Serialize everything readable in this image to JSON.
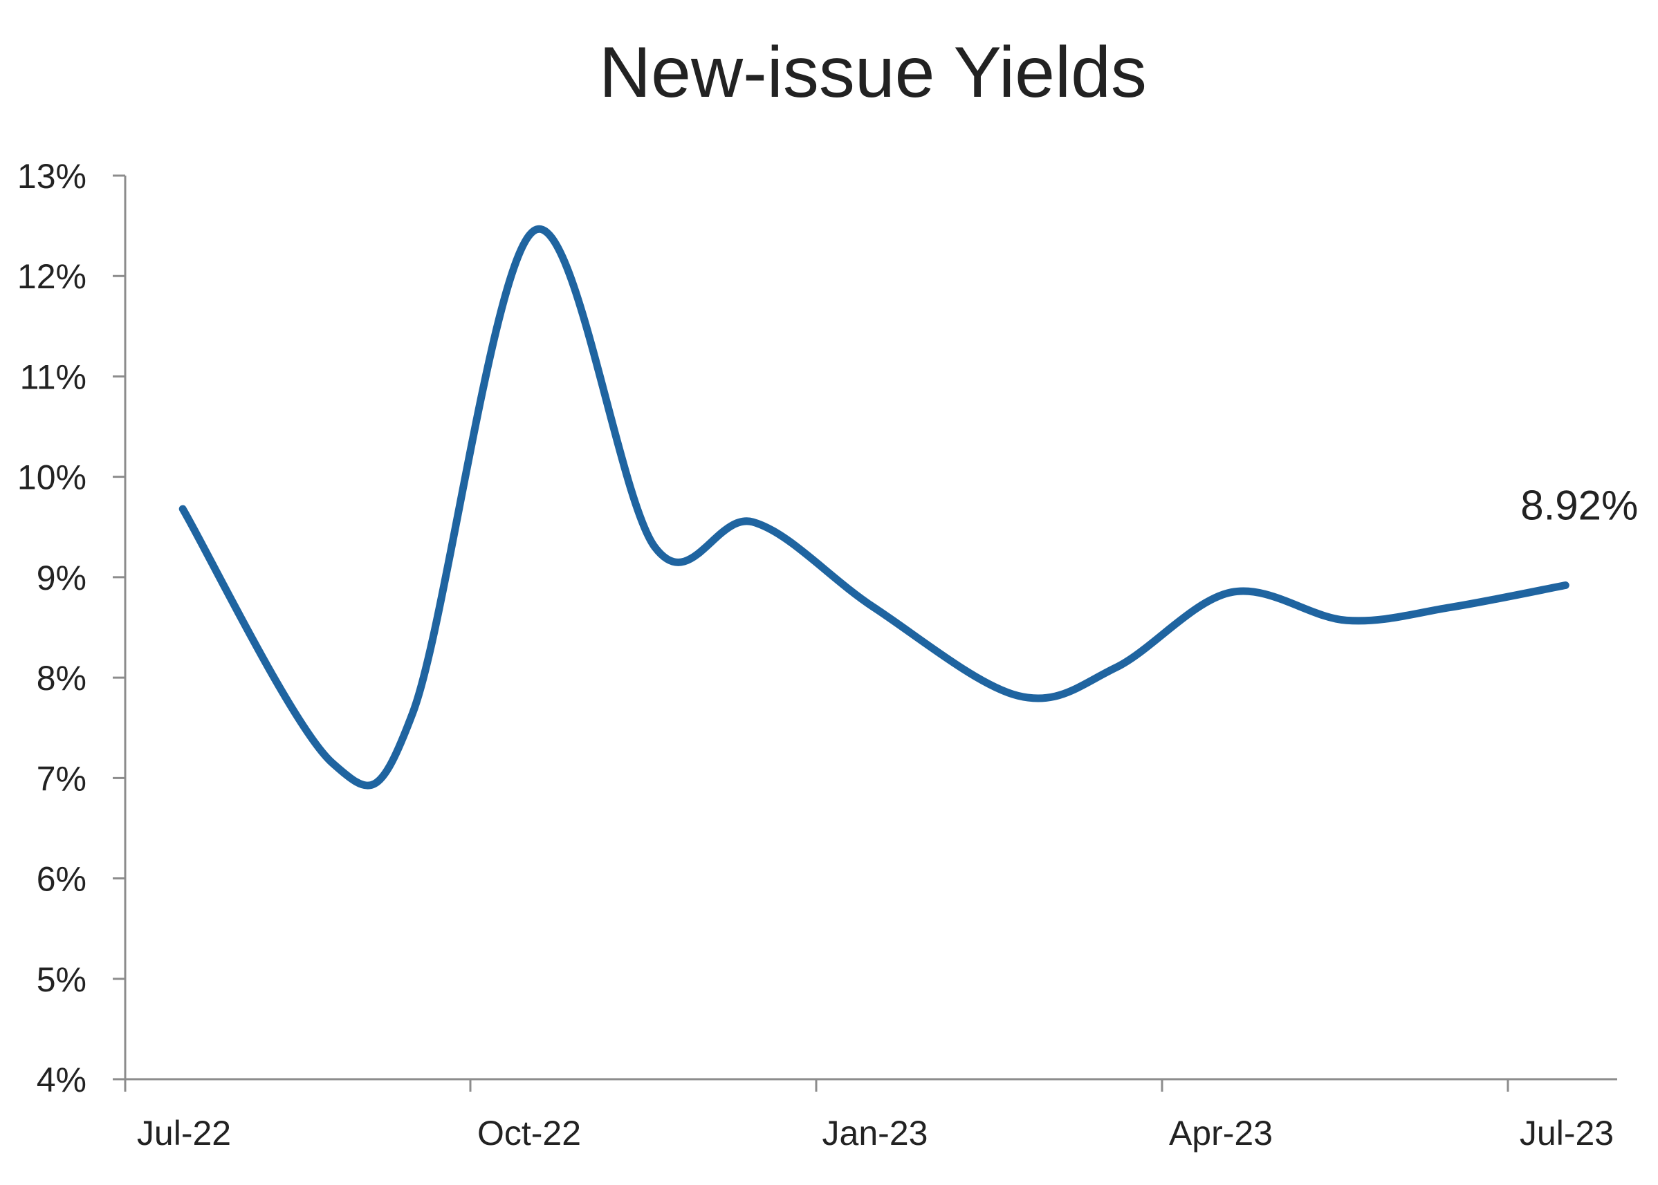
{
  "chart_data": {
    "type": "line",
    "title": "New-issue Yields",
    "xlabel": "",
    "ylabel": "",
    "x_tick_labels": [
      "Jul-22",
      "Oct-22",
      "Jan-23",
      "Apr-23",
      "Jul-23"
    ],
    "x_tick_months": [
      0,
      3,
      6,
      9,
      12
    ],
    "xlim_months": [
      0,
      12.6
    ],
    "ylim": [
      4,
      13
    ],
    "y_ticks": [
      4,
      5,
      6,
      7,
      8,
      9,
      10,
      11,
      12,
      13
    ],
    "y_tick_format": "percent",
    "grid": false,
    "legend": "none",
    "series": [
      {
        "color": "#1f64a0",
        "points": [
          {
            "month": 0.5,
            "value": 9.68
          },
          {
            "month": 1.8,
            "value": 7.15
          },
          {
            "month": 2.5,
            "value": 7.65
          },
          {
            "month": 3.55,
            "value": 12.45
          },
          {
            "month": 4.6,
            "value": 9.3
          },
          {
            "month": 5.45,
            "value": 9.55
          },
          {
            "month": 6.5,
            "value": 8.7
          },
          {
            "month": 7.75,
            "value": 7.82
          },
          {
            "month": 8.6,
            "value": 8.1
          },
          {
            "month": 9.6,
            "value": 8.85
          },
          {
            "month": 10.6,
            "value": 8.57
          },
          {
            "month": 11.5,
            "value": 8.7
          },
          {
            "month": 12.5,
            "value": 8.92
          }
        ]
      }
    ],
    "annotations": [
      {
        "text": "8.92%",
        "month": 12.5,
        "value": 8.92
      }
    ]
  }
}
